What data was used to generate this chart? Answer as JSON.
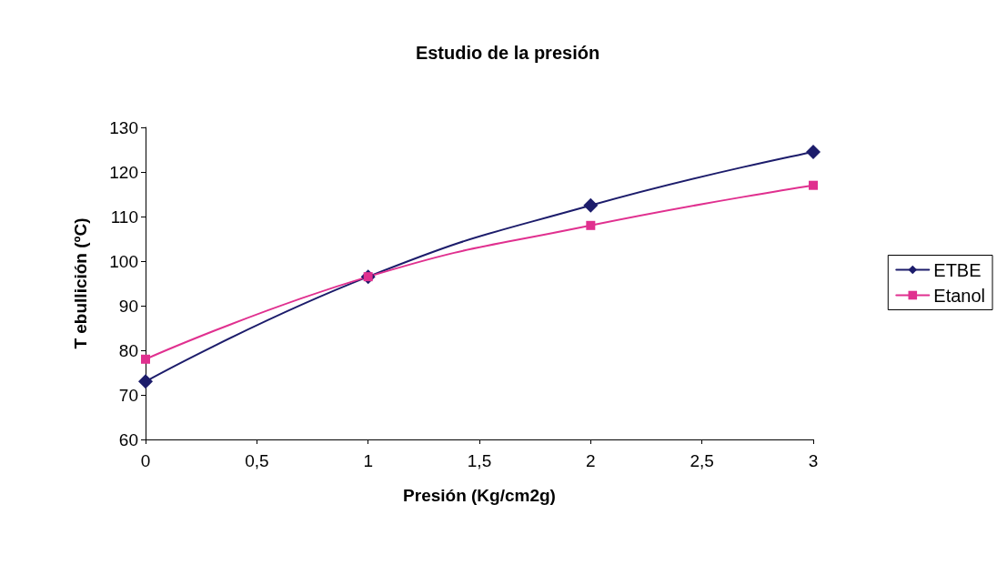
{
  "chart_data": {
    "type": "line",
    "title": "Estudio de la presión",
    "xlabel": "Presión (Kg/cm2g)",
    "ylabel": "T ebullición (ºC)",
    "x": [
      0,
      1,
      2,
      3
    ],
    "series": [
      {
        "name": "ETBE",
        "color": "#1c1c6b",
        "marker": "diamond",
        "values": [
          73,
          96.5,
          112.5,
          124.5
        ]
      },
      {
        "name": "Etanol",
        "color": "#e0308f",
        "marker": "square",
        "values": [
          78,
          96.5,
          108,
          117
        ]
      }
    ],
    "xlim": [
      0,
      3
    ],
    "xticks": [
      0,
      {
        "value": 0.5,
        "label": "0,5"
      },
      1,
      {
        "value": 1.5,
        "label": "1,5"
      },
      2,
      {
        "value": 2.5,
        "label": "2,5"
      },
      3
    ],
    "ylim": [
      60,
      130
    ],
    "yticks": [
      60,
      70,
      80,
      90,
      100,
      110,
      120,
      130
    ],
    "grid": false,
    "legend": "right",
    "line_style": "solid"
  }
}
